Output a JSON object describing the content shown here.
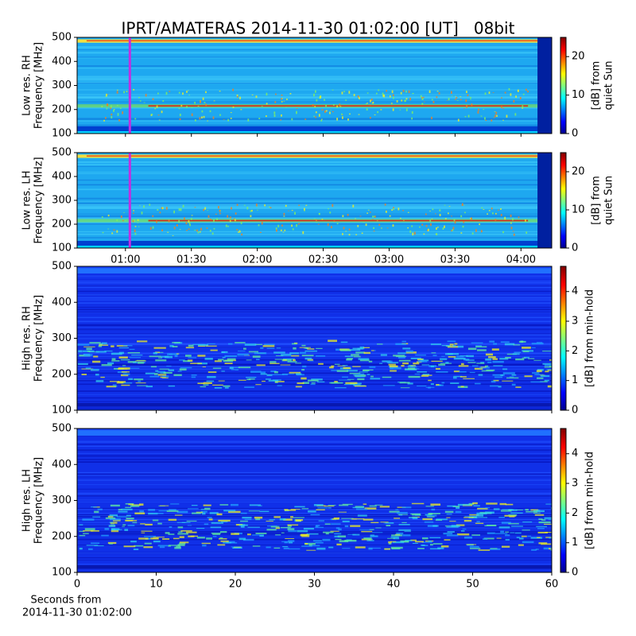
{
  "chart_data": [
    {
      "type": "heatmap",
      "title": "IPRT/AMATERAS 2014-11-30 01:02:00 [UT]   08bit",
      "ylabel": [
        "Low res. RH",
        "Frequency [MHz]"
      ],
      "xlim": [
        38,
        254
      ],
      "xticks": [
        {
          "value": 60,
          "label": "01:00"
        },
        {
          "value": 90,
          "label": "01:30"
        },
        {
          "value": 120,
          "label": "02:00"
        },
        {
          "value": 150,
          "label": "02:30"
        },
        {
          "value": 180,
          "label": "03:00"
        },
        {
          "value": 210,
          "label": "03:30"
        },
        {
          "value": 240,
          "label": "04:00"
        }
      ],
      "show_xtick_labels": false,
      "ylim": [
        100,
        500
      ],
      "yticks": [
        100,
        200,
        300,
        400,
        500
      ],
      "colorbar": {
        "label": [
          "[dB] from",
          "quiet Sun"
        ],
        "lim": [
          0,
          25
        ],
        "ticks": [
          0,
          10,
          20
        ]
      },
      "marker_x": 62,
      "marker_color": "#c030e0"
    },
    {
      "type": "heatmap",
      "ylabel": [
        "Low res. LH",
        "Frequency [MHz]"
      ],
      "xlim": [
        38,
        254
      ],
      "xticks": [
        {
          "value": 60,
          "label": "01:00"
        },
        {
          "value": 90,
          "label": "01:30"
        },
        {
          "value": 120,
          "label": "02:00"
        },
        {
          "value": 150,
          "label": "02:30"
        },
        {
          "value": 180,
          "label": "03:00"
        },
        {
          "value": 210,
          "label": "03:30"
        },
        {
          "value": 240,
          "label": "04:00"
        }
      ],
      "show_xtick_labels": true,
      "ylim": [
        100,
        500
      ],
      "yticks": [
        100,
        200,
        300,
        400,
        500
      ],
      "colorbar": {
        "label": [
          "[dB] from",
          "quiet Sun"
        ],
        "lim": [
          0,
          25
        ],
        "ticks": [
          0,
          10,
          20
        ]
      },
      "marker_x": 62,
      "marker_color": "#c030e0"
    },
    {
      "type": "heatmap",
      "ylabel": [
        "High res. RH",
        "Frequency [MHz]"
      ],
      "xlim": [
        0,
        60
      ],
      "xticks": [
        0,
        10,
        20,
        30,
        40,
        50,
        60
      ],
      "show_xtick_labels": false,
      "ylim": [
        100,
        500
      ],
      "yticks": [
        100,
        200,
        300,
        400,
        500
      ],
      "colorbar": {
        "label": [
          "[dB] from min-hold"
        ],
        "lim": [
          0,
          4.85
        ],
        "ticks": [
          0,
          1,
          2,
          3,
          4
        ]
      }
    },
    {
      "type": "heatmap",
      "ylabel": [
        "High res. LH",
        "Frequency [MHz]"
      ],
      "xlim": [
        0,
        60
      ],
      "xticks": [
        0,
        10,
        20,
        30,
        40,
        50,
        60
      ],
      "show_xtick_labels": true,
      "xlabel": [
        "Seconds from",
        "2014-11-30 01:02:00"
      ],
      "ylim": [
        100,
        500
      ],
      "yticks": [
        100,
        200,
        300,
        400,
        500
      ],
      "colorbar": {
        "label": [
          "[dB] from min-hold"
        ],
        "lim": [
          0,
          4.85
        ],
        "ticks": [
          0,
          1,
          2,
          3,
          4
        ]
      }
    }
  ]
}
